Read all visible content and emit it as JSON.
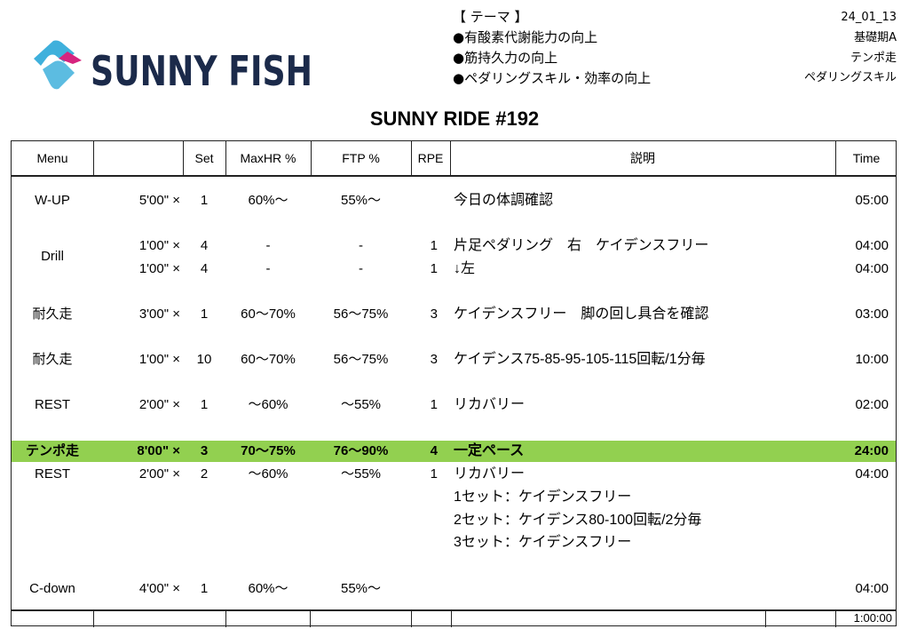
{
  "logo": {
    "text": "SUNNY FISH",
    "colors": {
      "text": "#1b2a4a",
      "wave": "#3fb0dc",
      "accent": "#d6247f"
    }
  },
  "theme": {
    "heading": "【 テーマ 】",
    "items": [
      "●有酸素代謝能力の向上",
      "●筋持久力の向上",
      "●ペダリングスキル・効率の向上"
    ]
  },
  "meta": {
    "date": "24_01_13",
    "lines": [
      "基礎期A",
      "テンポ走",
      "ペダリングスキル"
    ]
  },
  "title": "SUNNY RIDE #192",
  "headers": {
    "menu": "Menu",
    "duration": "",
    "set": "Set",
    "maxhr": "MaxHR %",
    "ftp": "FTP %",
    "rpe": "RPE",
    "desc": "説明",
    "time": "Time"
  },
  "rows": [
    {
      "menu": "W-UP",
      "duration": "5'00\" ×",
      "set": "1",
      "maxhr": "60%〜",
      "ftp": "55%〜",
      "rpe": "",
      "desc": "今日の体調確認",
      "time": "05:00"
    },
    {
      "menu": "Drill",
      "duration": "1'00\" ×",
      "set": "4",
      "maxhr": "-",
      "ftp": "-",
      "rpe": "1",
      "desc": "片足ペダリング　右　ケイデンスフリー",
      "time": "04:00"
    },
    {
      "menu": "",
      "duration": "1'00\" ×",
      "set": "4",
      "maxhr": "-",
      "ftp": "-",
      "rpe": "1",
      "desc": "↓左",
      "time": "04:00"
    },
    {
      "menu": "耐久走",
      "duration": "3'00\" ×",
      "set": "1",
      "maxhr": "60〜70%",
      "ftp": "56〜75%",
      "rpe": "3",
      "desc": "ケイデンスフリー　脚の回し具合を確認",
      "time": "03:00"
    },
    {
      "menu": "耐久走",
      "duration": "1'00\" ×",
      "set": "10",
      "maxhr": "60〜70%",
      "ftp": "56〜75%",
      "rpe": "3",
      "desc": "ケイデンス75-85-95-105-115回転/1分毎",
      "time": "10:00"
    },
    {
      "menu": "REST",
      "duration": "2'00\" ×",
      "set": "1",
      "maxhr": "〜60%",
      "ftp": "〜55%",
      "rpe": "1",
      "desc": "リカバリー",
      "time": "02:00"
    },
    {
      "menu": "テンポ走",
      "duration": "8'00\" ×",
      "set": "3",
      "maxhr": "70〜75%",
      "ftp": "76〜90%",
      "rpe": "4",
      "desc": "一定ペース",
      "time": "24:00",
      "highlight": true
    },
    {
      "menu": "REST",
      "duration": "2'00\" ×",
      "set": "2",
      "maxhr": "〜60%",
      "ftp": "〜55%",
      "rpe": "1",
      "desc": "リカバリー",
      "time": "04:00"
    },
    {
      "menu": "",
      "duration": "",
      "set": "",
      "maxhr": "",
      "ftp": "",
      "rpe": "",
      "desc": "1セット：ケイデンスフリー",
      "time": ""
    },
    {
      "menu": "",
      "duration": "",
      "set": "",
      "maxhr": "",
      "ftp": "",
      "rpe": "",
      "desc": "2セット：ケイデンス80-100回転/2分毎",
      "time": ""
    },
    {
      "menu": "",
      "duration": "",
      "set": "",
      "maxhr": "",
      "ftp": "",
      "rpe": "",
      "desc": "3セット：ケイデンスフリー",
      "time": ""
    },
    {
      "menu": "C-down",
      "duration": "4'00\" ×",
      "set": "1",
      "maxhr": "60%〜",
      "ftp": "55%〜",
      "rpe": "",
      "desc": "",
      "time": "04:00"
    }
  ],
  "total": "1:00:00",
  "highlight_color": "#92d050"
}
